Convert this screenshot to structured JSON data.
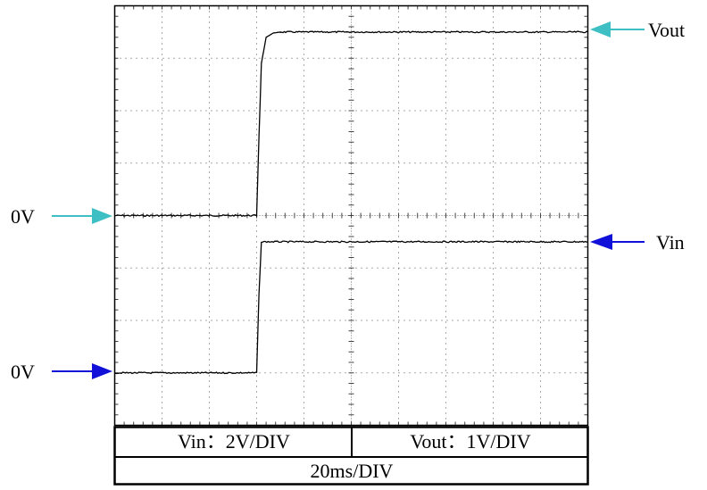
{
  "chart_data": {
    "type": "line",
    "title": "",
    "grid": true,
    "x_divisions": 10,
    "y_divisions": 8,
    "x_range_div": [
      0,
      10
    ],
    "y_range_div": [
      -8,
      0
    ],
    "series": [
      {
        "name": "Vout",
        "color": "#000000",
        "x": [
          0,
          3.0,
          3.05,
          3.1,
          3.2,
          3.35,
          3.5,
          10
        ],
        "y": [
          -4.0,
          -4.0,
          -2.5,
          -1.1,
          -0.6,
          -0.52,
          -0.5,
          -0.5
        ]
      },
      {
        "name": "Vin",
        "color": "#000000",
        "x": [
          0,
          3.0,
          3.05,
          3.1,
          10
        ],
        "y": [
          -7.0,
          -7.0,
          -5.5,
          -4.5,
          -4.5
        ]
      }
    ],
    "markers": {
      "vout_label": "Vout",
      "vin_label": "Vin",
      "vout_zero_label": "0V",
      "vin_zero_label": "0V",
      "vout_color": "#3ebfc4",
      "vin_color": "#1010d8"
    },
    "scale_table": {
      "vin_scale": "Vin：2V/DIV",
      "vout_scale": "Vout：1V/DIV",
      "time_scale": "20ms/DIV"
    }
  }
}
